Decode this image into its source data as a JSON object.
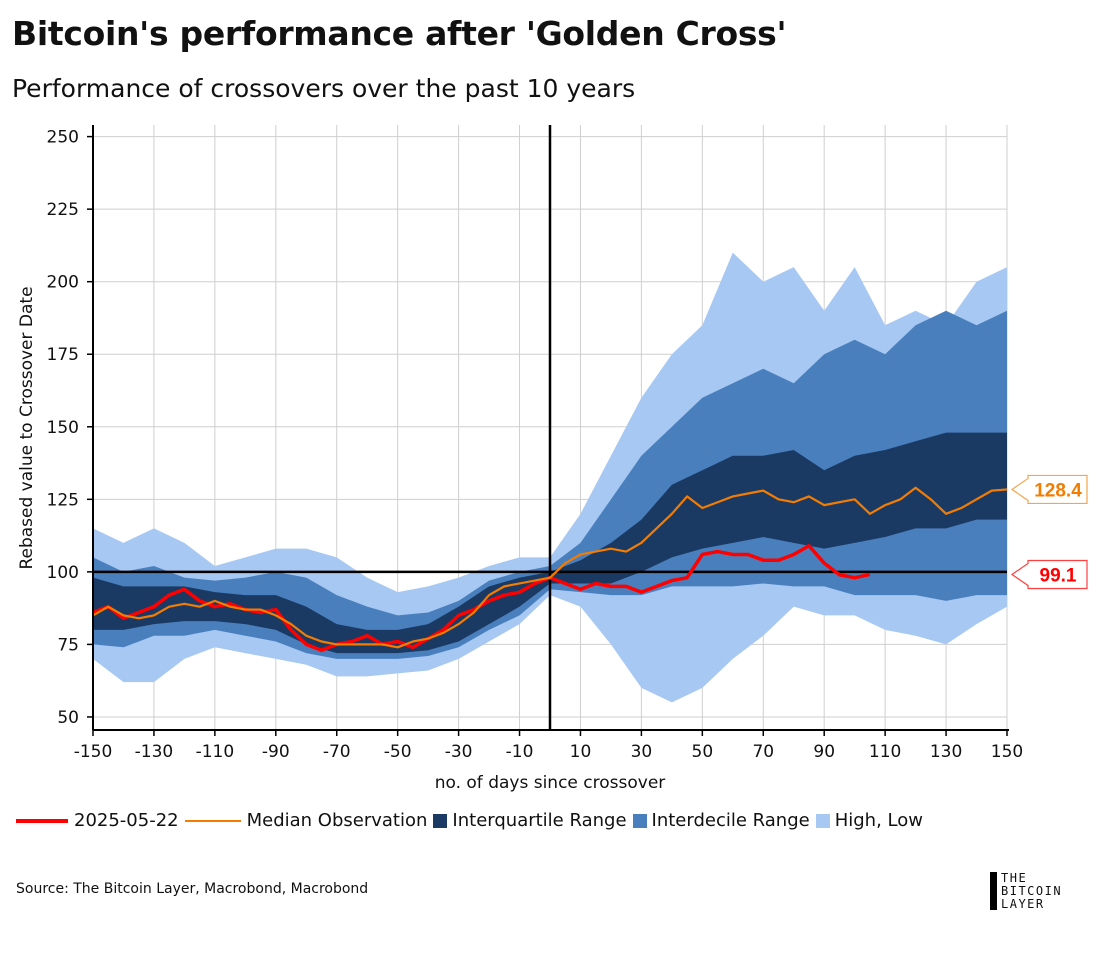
{
  "header": {
    "title": "Bitcoin's performance after 'Golden Cross'",
    "subtitle": "Performance of crossovers over the past 10 years"
  },
  "chart_data": {
    "type": "area",
    "title": "Bitcoin's performance after 'Golden Cross'",
    "subtitle": "Performance of crossovers over the past 10 years",
    "xlabel": "no. of days since crossover",
    "ylabel": "Rebased value to Crossover Date",
    "xlim": [
      -150,
      150
    ],
    "ylim": [
      45.5,
      254
    ],
    "xticks": [
      -150,
      -130,
      -110,
      -90,
      -70,
      -50,
      -30,
      -10,
      10,
      30,
      50,
      70,
      90,
      110,
      130,
      150
    ],
    "yticks": [
      50,
      75,
      100,
      125,
      150,
      175,
      200,
      225,
      250
    ],
    "grid": true,
    "legend_position": "bottom",
    "reference_lines": {
      "x": 0,
      "y": 100
    },
    "colors": {
      "series_2025": "#ff0000",
      "median": "#f47c00",
      "iqr": "#1a3a63",
      "idr": "#4a7fbd",
      "highlow": "#a6c8f2"
    },
    "band_x": [
      -150,
      -140,
      -130,
      -120,
      -110,
      -100,
      -90,
      -80,
      -70,
      -60,
      -50,
      -40,
      -30,
      -20,
      -10,
      0,
      10,
      20,
      30,
      40,
      50,
      60,
      70,
      80,
      90,
      100,
      110,
      120,
      130,
      140,
      150
    ],
    "bands": {
      "high": [
        115,
        110,
        115,
        110,
        102,
        105,
        108,
        108,
        105,
        98,
        93,
        95,
        98,
        102,
        105,
        105,
        120,
        140,
        160,
        175,
        185,
        210,
        200,
        205,
        190,
        205,
        185,
        190,
        185,
        200,
        205
      ],
      "p90": [
        105,
        100,
        102,
        98,
        97,
        98,
        100,
        98,
        92,
        88,
        85,
        86,
        90,
        97,
        100,
        102,
        110,
        125,
        140,
        150,
        160,
        165,
        170,
        165,
        175,
        180,
        175,
        185,
        190,
        185,
        190
      ],
      "p75": [
        98,
        95,
        95,
        95,
        93,
        92,
        92,
        88,
        82,
        80,
        80,
        82,
        88,
        95,
        98,
        100,
        104,
        110,
        118,
        130,
        135,
        140,
        140,
        142,
        135,
        140,
        142,
        145,
        148,
        148,
        148
      ],
      "p25": [
        80,
        80,
        82,
        83,
        83,
        82,
        80,
        75,
        72,
        72,
        72,
        73,
        76,
        82,
        88,
        96,
        96,
        96,
        100,
        105,
        108,
        110,
        112,
        110,
        108,
        110,
        112,
        115,
        115,
        118,
        118
      ],
      "p10": [
        75,
        74,
        78,
        78,
        80,
        78,
        76,
        72,
        70,
        70,
        70,
        71,
        74,
        80,
        85,
        94,
        93,
        92,
        92,
        95,
        95,
        95,
        96,
        95,
        95,
        92,
        92,
        92,
        90,
        92,
        92
      ],
      "low": [
        70,
        62,
        62,
        70,
        74,
        72,
        70,
        68,
        64,
        64,
        65,
        66,
        70,
        76,
        82,
        92,
        88,
        75,
        60,
        55,
        60,
        70,
        78,
        88,
        85,
        85,
        80,
        78,
        75,
        82,
        88
      ]
    },
    "series": [
      {
        "name": "Median Observation",
        "x": [
          -150,
          -145,
          -140,
          -135,
          -130,
          -125,
          -120,
          -115,
          -110,
          -105,
          -100,
          -95,
          -90,
          -85,
          -80,
          -75,
          -70,
          -65,
          -60,
          -55,
          -50,
          -45,
          -40,
          -35,
          -30,
          -25,
          -20,
          -15,
          -10,
          -5,
          0,
          5,
          10,
          15,
          20,
          25,
          30,
          35,
          40,
          45,
          50,
          55,
          60,
          65,
          70,
          75,
          80,
          85,
          90,
          95,
          100,
          105,
          110,
          115,
          120,
          125,
          130,
          135,
          140,
          145,
          150
        ],
        "values": [
          85,
          88,
          85,
          84,
          85,
          88,
          89,
          88,
          90,
          88,
          87,
          87,
          85,
          82,
          78,
          76,
          75,
          75,
          75,
          75,
          74,
          76,
          77,
          79,
          82,
          86,
          92,
          95,
          96,
          97,
          98,
          103,
          106,
          107,
          108,
          107,
          110,
          115,
          120,
          126,
          122,
          124,
          126,
          127,
          128,
          125,
          124,
          126,
          123,
          124,
          125,
          120,
          123,
          125,
          129,
          125,
          120,
          122,
          125,
          128,
          128.4
        ]
      },
      {
        "name": "2025-05-22",
        "x": [
          -150,
          -145,
          -140,
          -135,
          -130,
          -125,
          -120,
          -115,
          -110,
          -105,
          -100,
          -95,
          -90,
          -85,
          -80,
          -75,
          -70,
          -65,
          -60,
          -55,
          -50,
          -45,
          -40,
          -35,
          -30,
          -25,
          -20,
          -15,
          -10,
          -5,
          0,
          5,
          10,
          15,
          20,
          25,
          30,
          35,
          40,
          45,
          50,
          55,
          60,
          65,
          70,
          75,
          80,
          85,
          90,
          95,
          100,
          105
        ],
        "values": [
          86,
          88,
          84,
          86,
          88,
          92,
          94,
          90,
          88,
          89,
          87,
          86,
          87,
          80,
          75,
          73,
          75,
          76,
          78,
          75,
          76,
          74,
          77,
          80,
          85,
          87,
          90,
          92,
          93,
          96,
          98,
          96,
          94,
          96,
          95,
          95,
          93,
          95,
          97,
          98,
          106,
          107,
          106,
          106,
          104,
          104,
          106,
          109,
          103,
          99,
          98,
          99.1
        ]
      }
    ],
    "end_labels": {
      "median": "128.4",
      "series_2025": "99.1"
    },
    "legend": [
      "2025-05-22",
      "Median Observation",
      "Interquartile Range",
      "Interdecile Range",
      "High, Low"
    ]
  },
  "footer": {
    "source": "Source: The Bitcoin Layer, Macrobond, Macrobond",
    "logo_lines": [
      "THE",
      "BITCOIN",
      "LAYER"
    ]
  }
}
